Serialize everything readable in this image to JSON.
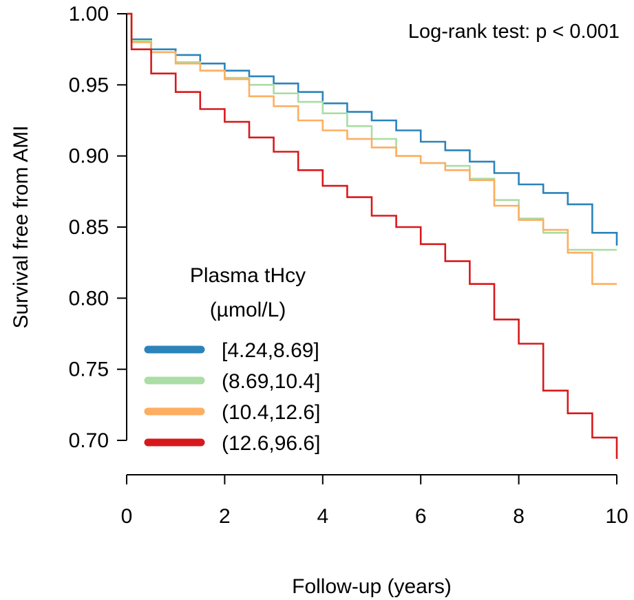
{
  "chart_data": {
    "type": "line",
    "title": "",
    "xlabel": "Follow-up (years)",
    "ylabel": "Survival free from AMI",
    "xlim": [
      0,
      10
    ],
    "ylim": [
      0.7,
      1.0
    ],
    "x_ticks": [
      "0",
      "2",
      "4",
      "6",
      "8",
      "10"
    ],
    "y_ticks": [
      "1.00",
      "0.95",
      "0.90",
      "0.85",
      "0.80",
      "0.75",
      "0.70"
    ],
    "annotation": "Log-rank test: p < 0.001",
    "legend": {
      "title_line1": "Plasma tHcy",
      "title_line2": "(µmol/L)",
      "placement": "bottom-left"
    },
    "series": [
      {
        "name": "[4.24,8.69]",
        "color": "#2b83ba",
        "x": [
          0,
          0.1,
          0.5,
          1,
          1.5,
          2,
          2.5,
          3,
          3.5,
          4,
          4.5,
          5,
          5.5,
          6,
          6.5,
          7,
          7.5,
          8,
          8.5,
          9,
          9.5,
          10
        ],
        "y": [
          1.0,
          0.982,
          0.975,
          0.971,
          0.965,
          0.96,
          0.956,
          0.951,
          0.945,
          0.937,
          0.931,
          0.925,
          0.918,
          0.91,
          0.904,
          0.896,
          0.888,
          0.88,
          0.874,
          0.866,
          0.846,
          0.837
        ]
      },
      {
        "name": "(8.69,10.4]",
        "color": "#abdda4",
        "x": [
          0,
          0.1,
          0.5,
          1,
          1.5,
          2,
          2.5,
          3,
          3.5,
          4,
          4.5,
          5,
          5.5,
          6,
          6.5,
          7,
          7.5,
          8,
          8.5,
          9,
          9.5,
          10
        ],
        "y": [
          1.0,
          0.981,
          0.973,
          0.966,
          0.96,
          0.955,
          0.95,
          0.944,
          0.938,
          0.93,
          0.921,
          0.912,
          0.9,
          0.895,
          0.893,
          0.884,
          0.869,
          0.856,
          0.846,
          0.834,
          0.834,
          0.834
        ]
      },
      {
        "name": "(10.4,12.6]",
        "color": "#fdae61",
        "x": [
          0,
          0.1,
          0.5,
          1,
          1.5,
          2,
          2.5,
          3,
          3.5,
          4,
          4.5,
          5,
          5.5,
          6,
          6.5,
          7,
          7.5,
          8,
          8.5,
          9,
          9.5,
          10
        ],
        "y": [
          1.0,
          0.98,
          0.973,
          0.965,
          0.96,
          0.954,
          0.942,
          0.935,
          0.925,
          0.918,
          0.912,
          0.906,
          0.9,
          0.895,
          0.89,
          0.883,
          0.865,
          0.855,
          0.848,
          0.832,
          0.81,
          0.81
        ]
      },
      {
        "name": "(12.6,96.6]",
        "color": "#d7191c",
        "x": [
          0,
          0.1,
          0.5,
          1,
          1.5,
          2,
          2.5,
          3,
          3.5,
          4,
          4.5,
          5,
          5.5,
          6,
          6.5,
          7,
          7.5,
          8,
          8.5,
          9,
          9.5,
          10
        ],
        "y": [
          1.0,
          0.975,
          0.958,
          0.945,
          0.933,
          0.924,
          0.913,
          0.903,
          0.89,
          0.879,
          0.871,
          0.858,
          0.85,
          0.838,
          0.826,
          0.81,
          0.785,
          0.768,
          0.735,
          0.719,
          0.702,
          0.687
        ]
      }
    ]
  }
}
